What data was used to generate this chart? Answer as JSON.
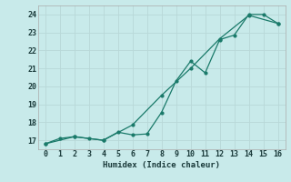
{
  "xlabel": "Humidex (Indice chaleur)",
  "ylabel": "",
  "background_color": "#c8eaea",
  "grid_color": "#b8d8d8",
  "line_color": "#1a7a6a",
  "xlim": [
    -0.5,
    16.5
  ],
  "ylim": [
    16.5,
    24.5
  ],
  "xticks": [
    0,
    1,
    2,
    3,
    4,
    5,
    6,
    7,
    8,
    9,
    10,
    11,
    12,
    13,
    14,
    15,
    16
  ],
  "yticks": [
    17,
    18,
    19,
    20,
    21,
    22,
    23,
    24
  ],
  "line1_x": [
    0,
    1,
    2,
    3,
    4,
    5,
    6,
    7,
    8,
    9,
    10,
    11,
    12,
    13,
    14,
    15,
    16
  ],
  "line1_y": [
    16.8,
    17.1,
    17.2,
    17.1,
    17.0,
    17.45,
    17.3,
    17.35,
    18.55,
    20.3,
    21.4,
    20.75,
    22.6,
    22.85,
    24.0,
    24.0,
    23.5
  ],
  "line2_x": [
    0,
    2,
    4,
    6,
    8,
    10,
    12,
    14,
    16
  ],
  "line2_y": [
    16.8,
    17.2,
    17.0,
    17.85,
    19.5,
    21.0,
    22.65,
    23.95,
    23.5
  ],
  "fontsize_label": 6.5,
  "fontsize_tick": 6,
  "marker_size": 2,
  "line_width": 0.9
}
